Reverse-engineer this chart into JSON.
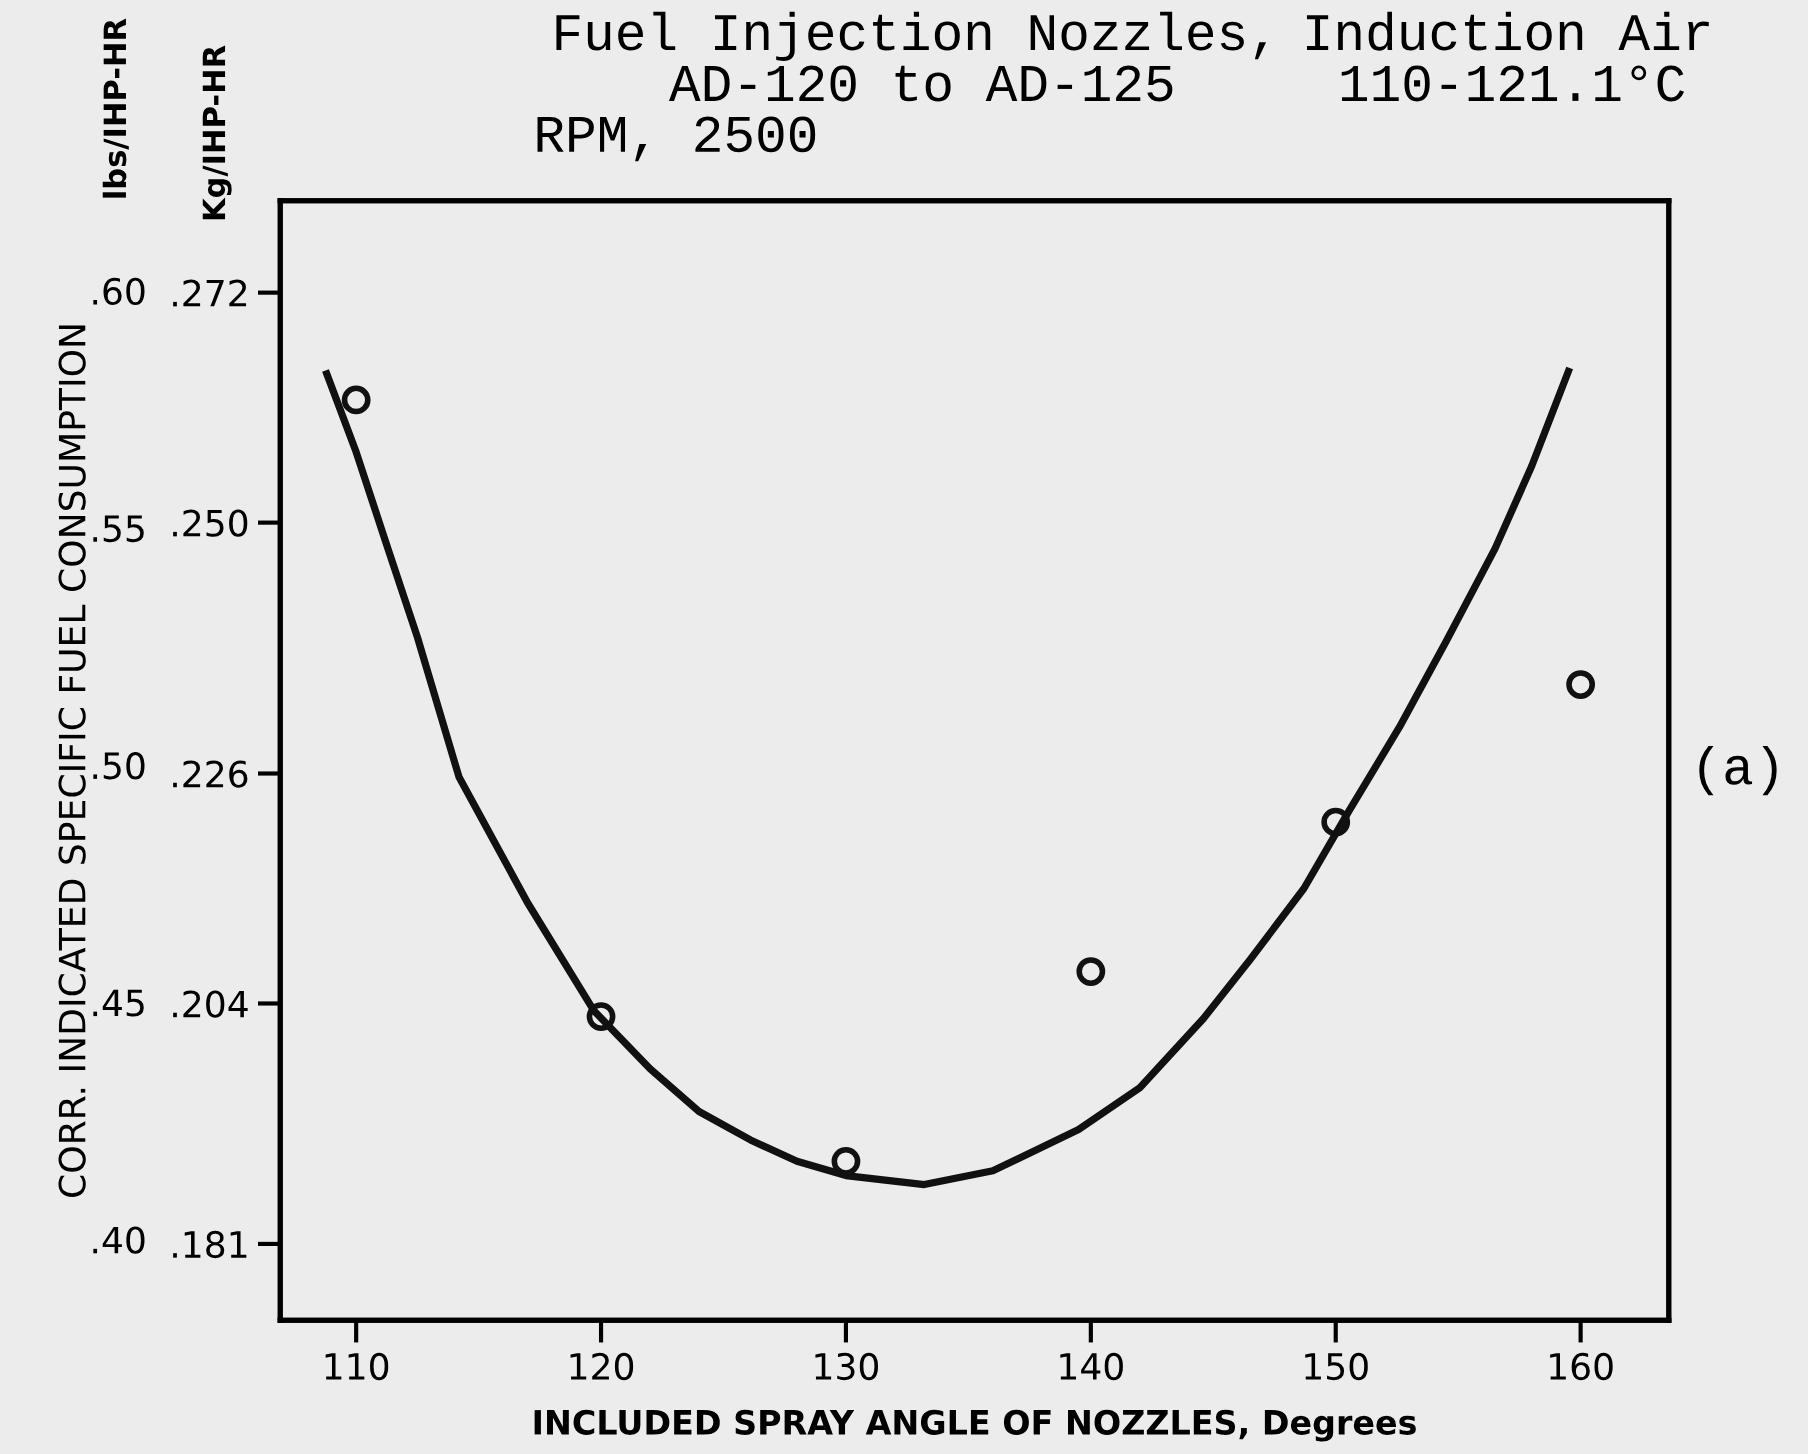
{
  "chart_data": {
    "type": "scatter",
    "xlabel": "INCLUDED SPRAY ANGLE OF NOZZLES, Degrees",
    "ylabel": "CORR. INDICATED SPECIFIC FUEL CONSUMPTION",
    "y2label": "Kg/IHP-HR",
    "annotations": [
      "Fuel Injection Nozzles,",
      "AD-120 to AD-125",
      "RPM, 2500",
      "Induction Air",
      "110-121.1°C",
      "(a)",
      "lbs/IHP-HR"
    ],
    "x": [
      110,
      120,
      130,
      140,
      150,
      160
    ],
    "series": [
      {
        "type": "scatter",
        "color": "#111111",
        "marker": "circle",
        "values": [
          0.577,
          0.447,
          0.4165,
          0.4565,
          0.488,
          0.517
        ]
      },
      {
        "type": "line",
        "color": "#111111",
        "marker": "none",
        "line_style": "solid",
        "x": [
          108.8,
          110,
          111.3,
          112.5,
          114.2,
          117,
          119.7,
          122,
          124,
          126.1,
          128,
          130,
          133.2,
          136,
          139.5,
          142,
          144.6,
          146.5,
          148.7,
          150.5,
          152.6,
          154.5,
          156.5,
          158,
          159.5
        ],
        "values": [
          0.5825,
          0.566,
          0.5456,
          0.527,
          0.4975,
          0.471,
          0.4483,
          0.436,
          0.427,
          0.421,
          0.4165,
          0.4135,
          0.4116,
          0.4145,
          0.4232,
          0.432,
          0.4466,
          0.459,
          0.474,
          0.49,
          0.508,
          0.526,
          0.5456,
          0.563,
          0.583
        ]
      }
    ],
    "xlim": [
      106.9,
      163.6
    ],
    "xticks": [
      110,
      120,
      130,
      140,
      150,
      160
    ],
    "ylim": [
      0.383,
      0.619
    ],
    "yticks": [
      {
        "value": 0.6,
        "label": ".60"
      },
      {
        "value": 0.55,
        "label": ".55"
      },
      {
        "value": 0.5,
        "label": ".50"
      },
      {
        "value": 0.45,
        "label": ".45"
      },
      {
        "value": 0.4,
        "label": ".40"
      }
    ],
    "y2lim": [
      0.1737,
      0.2808
    ],
    "y2ticks": [
      {
        "value": 0.272,
        "label": ".272"
      },
      {
        "value": 0.25,
        "label": ".250"
      },
      {
        "value": 0.226,
        "label": ".226"
      },
      {
        "value": 0.204,
        "label": ".204"
      },
      {
        "value": 0.181,
        "label": ".181"
      }
    ],
    "grid": false,
    "legend": false
  }
}
